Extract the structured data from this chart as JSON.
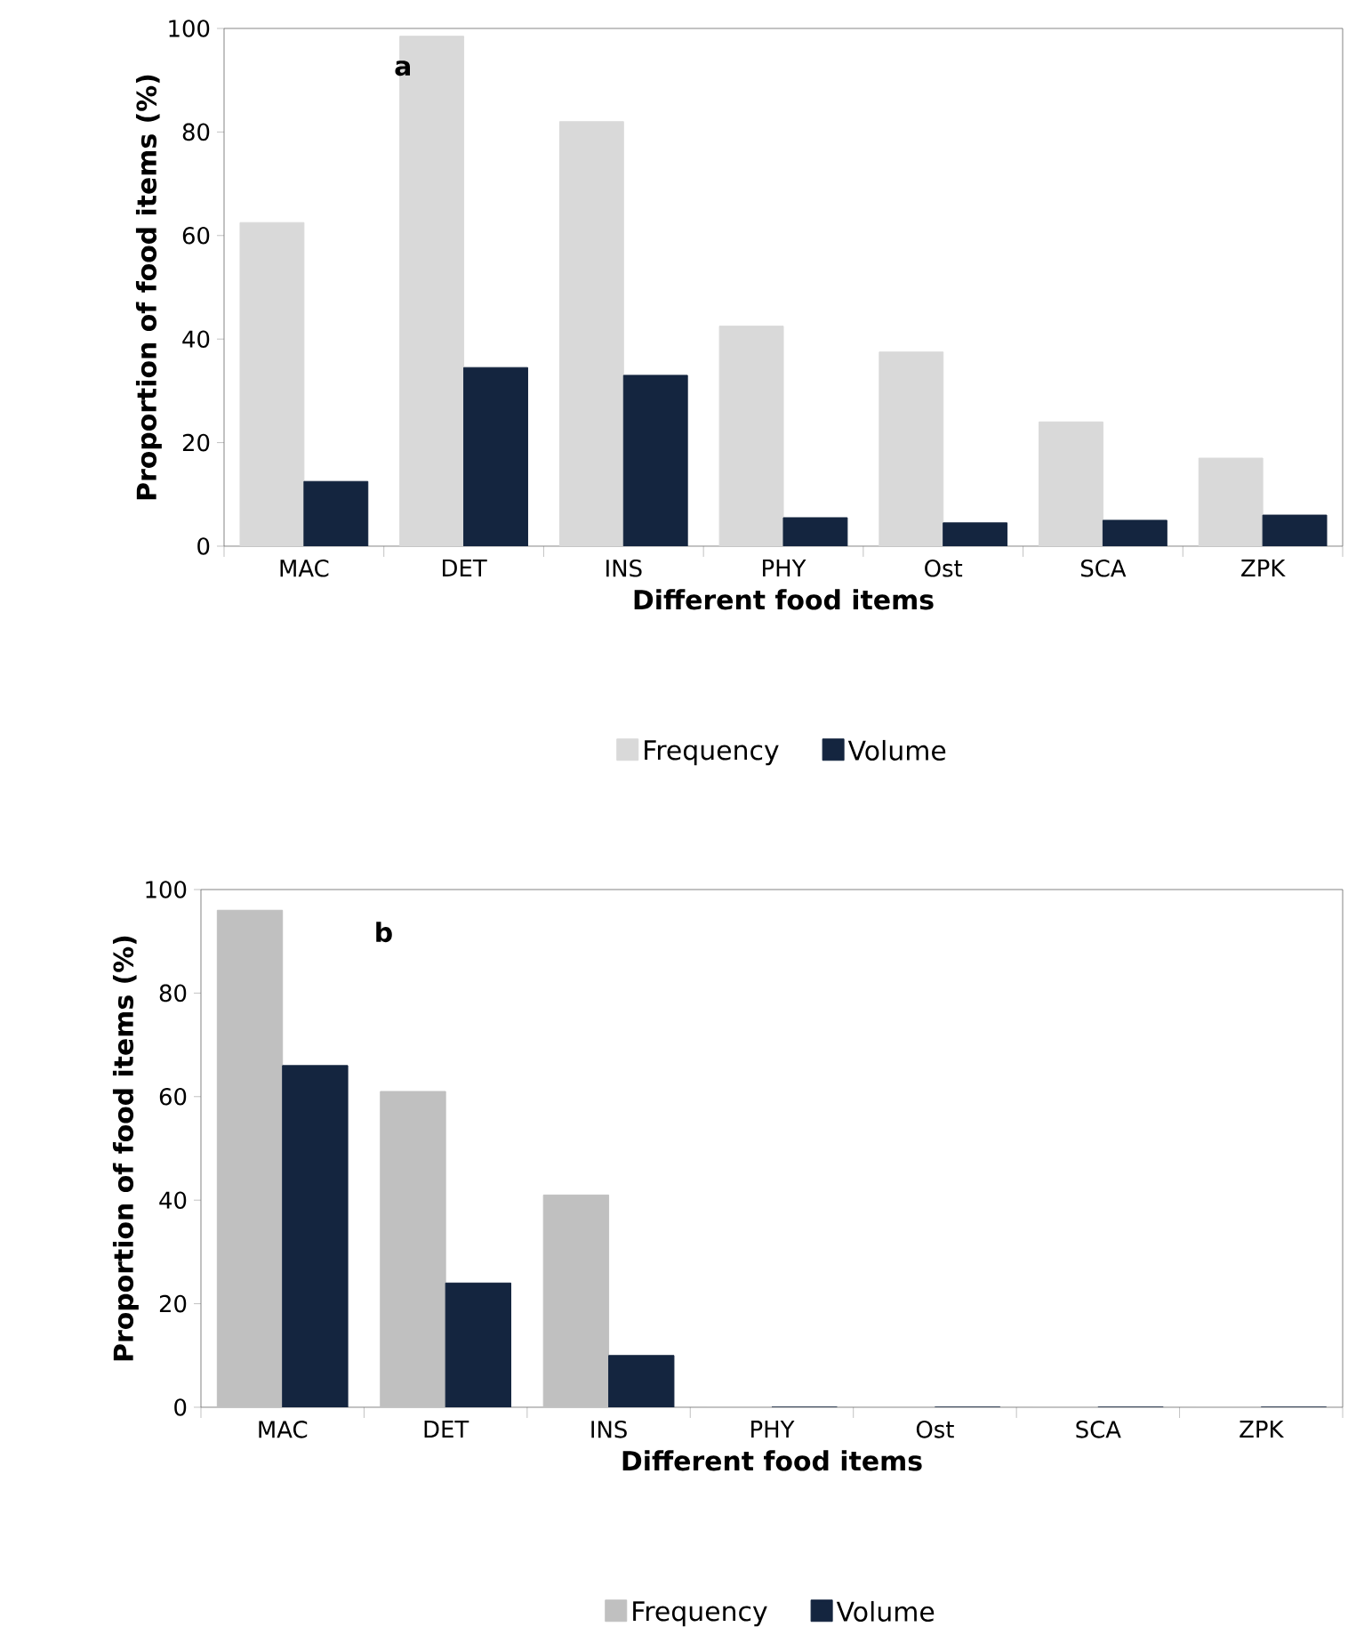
{
  "chart_data": [
    {
      "type": "bar",
      "categories": [
        "MAC",
        "DET",
        "INS",
        "PHY",
        "Ost",
        "SCA",
        "ZPK"
      ],
      "xlabel": "Different food items",
      "ylabel": "Proportion of food items (%)",
      "ylim": [
        0,
        100
      ],
      "yticks": [
        0,
        20,
        40,
        60,
        80,
        100
      ],
      "legend": "bottom",
      "annotations": [
        "a"
      ],
      "series": [
        {
          "name": "Frequency",
          "color": "#d9d9d9",
          "values": [
            62.5,
            98.5,
            82,
            42.5,
            37.5,
            24,
            17
          ]
        },
        {
          "name": "Volume",
          "color": "#14253f",
          "values": [
            12.5,
            34.5,
            33,
            5.5,
            4.5,
            5,
            6
          ]
        }
      ]
    },
    {
      "type": "bar",
      "categories": [
        "MAC",
        "DET",
        "INS",
        "PHY",
        "Ost",
        "SCA",
        "ZPK"
      ],
      "xlabel": "Different food items",
      "ylabel": "Proportion of food items (%)",
      "ylim": [
        0,
        100
      ],
      "yticks": [
        0,
        20,
        40,
        60,
        80,
        100
      ],
      "legend": "bottom",
      "annotations": [
        "b"
      ],
      "series": [
        {
          "name": "Frequency",
          "color": "#c0c0c0",
          "values": [
            96,
            61,
            41,
            0,
            0,
            0,
            0
          ]
        },
        {
          "name": "Volume",
          "color": "#14253f",
          "values": [
            66,
            24,
            10,
            0,
            0,
            0,
            0
          ]
        }
      ]
    }
  ]
}
